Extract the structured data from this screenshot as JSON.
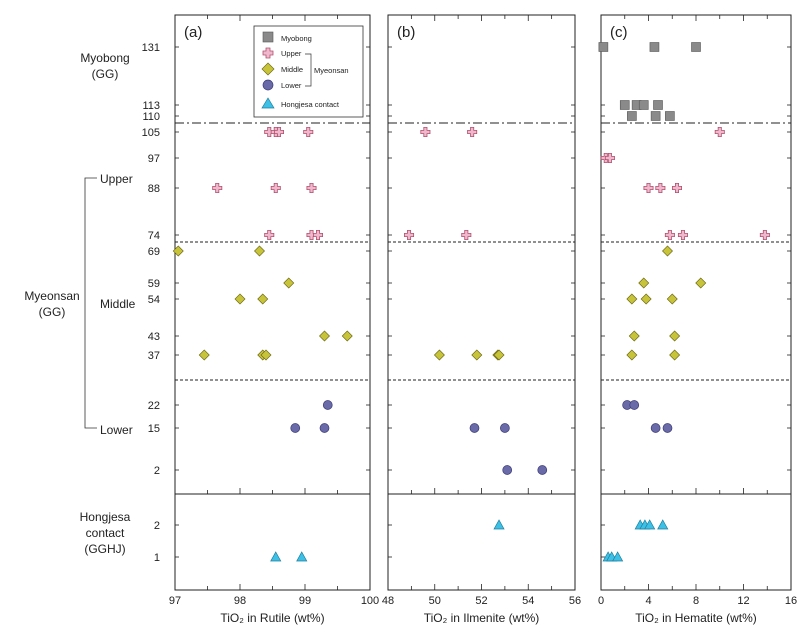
{
  "chart_data": {
    "type": "scatter",
    "samples": {
      "y_ticks": [
        131,
        113,
        110,
        105,
        97,
        88,
        74,
        69,
        59,
        54,
        43,
        37,
        22,
        15,
        2
      ],
      "hgj_ticks": [
        2,
        1
      ],
      "group_labels": {
        "myobong": "Myobong",
        "myobong_code": "(GG)",
        "myeonsan": "Myeonsan",
        "myeonsan_code": "(GG)",
        "upper": "Upper",
        "middle": "Middle",
        "lower": "Lower",
        "hongjesa": "Hongjesa",
        "hongjesa_2": "contact",
        "hongjesa_code": "(GGHJ)"
      }
    },
    "legend": {
      "myobong": "Myobong",
      "upper": "Upper",
      "middle": "Middle",
      "lower": "Lower",
      "myeonsan": "Myeonsan",
      "hongjesa": "Hongjesa contact"
    },
    "colors": {
      "myobong": "#8a8a8a",
      "upper_fill": "#f0b8cc",
      "upper_stroke": "#b0506e",
      "middle_fill": "#c8c43a",
      "middle_stroke": "#6e6a18",
      "lower_fill": "#6a6aa8",
      "lower_stroke": "#3a3a78",
      "hongjesa_fill": "#3cc0e6",
      "hongjesa_stroke": "#1e7e9c"
    },
    "panels": [
      {
        "label": "(a)",
        "xlabel": "TiO₂ in Rutile (wt%)",
        "xlim": [
          97,
          100
        ],
        "x_ticks": [
          97,
          98,
          99,
          100
        ],
        "series": {
          "myobong": [],
          "upper": [
            [
              98.45,
              105
            ],
            [
              98.55,
              105
            ],
            [
              98.6,
              105
            ],
            [
              99.05,
              105
            ],
            [
              97.65,
              88
            ],
            [
              98.55,
              88
            ],
            [
              99.1,
              88
            ],
            [
              98.45,
              74
            ],
            [
              99.1,
              74
            ],
            [
              99.2,
              74
            ]
          ],
          "middle": [
            [
              97.05,
              69
            ],
            [
              98.3,
              69
            ],
            [
              98.75,
              59
            ],
            [
              98.0,
              54
            ],
            [
              98.35,
              54
            ],
            [
              99.3,
              43
            ],
            [
              99.65,
              43
            ],
            [
              97.45,
              37
            ],
            [
              98.35,
              37
            ],
            [
              98.4,
              37
            ]
          ],
          "lower": [
            [
              99.35,
              22
            ],
            [
              98.85,
              15
            ],
            [
              99.3,
              15
            ]
          ],
          "hongjesa": [
            [
              98.55,
              1
            ],
            [
              98.95,
              1
            ]
          ]
        }
      },
      {
        "label": "(b)",
        "xlabel": "TiO₂ in Ilmenite (wt%)",
        "xlim": [
          48,
          56
        ],
        "x_ticks": [
          48,
          50,
          52,
          54,
          56
        ],
        "series": {
          "myobong": [],
          "upper": [
            [
              49.6,
              105
            ],
            [
              51.6,
              105
            ],
            [
              48.9,
              74
            ],
            [
              51.35,
              74
            ]
          ],
          "middle": [
            [
              50.2,
              37
            ],
            [
              51.8,
              37
            ],
            [
              52.7,
              37
            ],
            [
              52.75,
              37
            ]
          ],
          "lower": [
            [
              51.7,
              15
            ],
            [
              53.0,
              15
            ],
            [
              53.1,
              2
            ],
            [
              54.6,
              2
            ]
          ],
          "hongjesa": [
            [
              52.75,
              2
            ]
          ]
        }
      },
      {
        "label": "(c)",
        "xlabel": "TiO₂ in Hematite (wt%)",
        "xlim": [
          0,
          16
        ],
        "x_ticks": [
          0,
          4,
          8,
          12,
          16
        ],
        "series": {
          "myobong": [
            [
              0.2,
              131
            ],
            [
              4.5,
              131
            ],
            [
              8.0,
              131
            ],
            [
              2.0,
              113
            ],
            [
              3.0,
              113
            ],
            [
              3.6,
              113
            ],
            [
              4.8,
              113
            ],
            [
              2.6,
              110
            ],
            [
              4.6,
              110
            ],
            [
              5.8,
              110
            ]
          ],
          "upper": [
            [
              10.0,
              105
            ],
            [
              0.4,
              97
            ],
            [
              0.75,
              97
            ],
            [
              4.0,
              88
            ],
            [
              5.0,
              88
            ],
            [
              6.4,
              88
            ],
            [
              5.8,
              74
            ],
            [
              6.9,
              74
            ],
            [
              13.8,
              74
            ]
          ],
          "middle": [
            [
              5.6,
              69
            ],
            [
              3.6,
              59
            ],
            [
              8.4,
              59
            ],
            [
              2.6,
              54
            ],
            [
              3.8,
              54
            ],
            [
              6.0,
              54
            ],
            [
              2.8,
              43
            ],
            [
              6.2,
              43
            ],
            [
              2.6,
              37
            ],
            [
              6.2,
              37
            ]
          ],
          "lower": [
            [
              2.2,
              22
            ],
            [
              2.8,
              22
            ],
            [
              4.6,
              15
            ],
            [
              5.6,
              15
            ]
          ],
          "hongjesa": [
            [
              0.6,
              1
            ],
            [
              0.9,
              1
            ],
            [
              1.4,
              1
            ],
            [
              3.3,
              2
            ],
            [
              3.7,
              2
            ],
            [
              4.1,
              2
            ],
            [
              5.2,
              2
            ]
          ]
        }
      }
    ]
  }
}
